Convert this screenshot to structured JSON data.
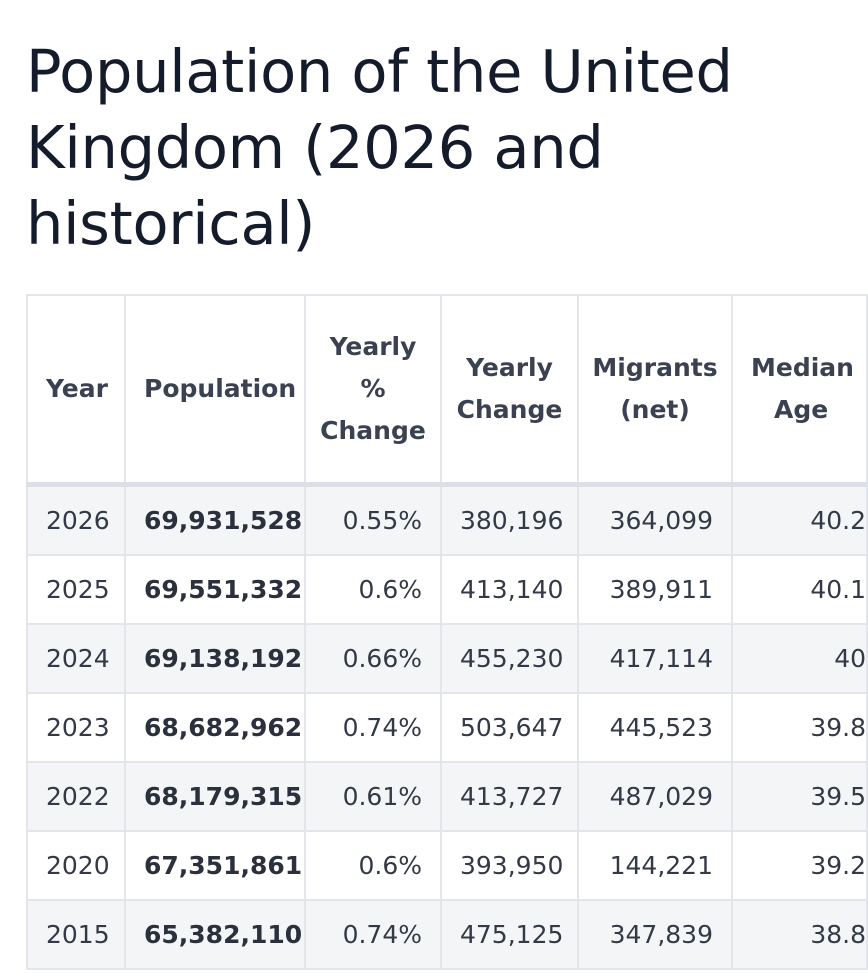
{
  "page": {
    "title": "Population of the United Kingdom (2026 and historical)"
  },
  "table": {
    "headers": {
      "year": "Year",
      "population": "Population",
      "yearly_pct_line1": "Yearly",
      "yearly_pct_line2": "%",
      "yearly_pct_line3": "Change",
      "yearly_change_line1": "Yearly",
      "yearly_change_line2": "Change",
      "migrants_line1": "Migrants",
      "migrants_line2": "(net)",
      "median_age_line1": "Median",
      "median_age_line2": "Age"
    },
    "rows": [
      {
        "year": "2026",
        "population": "69,931,528",
        "yearly_pct": "0.55%",
        "yearly_change": "380,196",
        "migrants": "364,099",
        "median_age": "40.2"
      },
      {
        "year": "2025",
        "population": "69,551,332",
        "yearly_pct": "0.6%",
        "yearly_change": "413,140",
        "migrants": "389,911",
        "median_age": "40.1"
      },
      {
        "year": "2024",
        "population": "69,138,192",
        "yearly_pct": "0.66%",
        "yearly_change": "455,230",
        "migrants": "417,114",
        "median_age": "40"
      },
      {
        "year": "2023",
        "population": "68,682,962",
        "yearly_pct": "0.74%",
        "yearly_change": "503,647",
        "migrants": "445,523",
        "median_age": "39.8"
      },
      {
        "year": "2022",
        "population": "68,179,315",
        "yearly_pct": "0.61%",
        "yearly_change": "413,727",
        "migrants": "487,029",
        "median_age": "39.5"
      },
      {
        "year": "2020",
        "population": "67,351,861",
        "yearly_pct": "0.6%",
        "yearly_change": "393,950",
        "migrants": "144,221",
        "median_age": "39.2"
      },
      {
        "year": "2015",
        "population": "65,382,110",
        "yearly_pct": "0.74%",
        "yearly_change": "475,125",
        "migrants": "347,839",
        "median_age": "38.8"
      }
    ]
  }
}
